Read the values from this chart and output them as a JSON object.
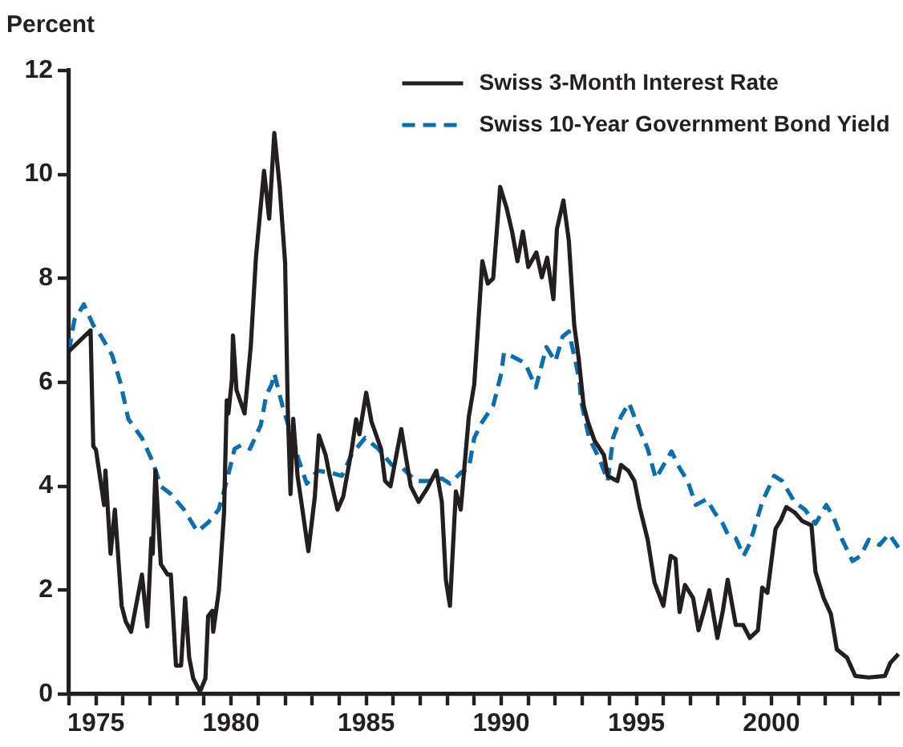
{
  "chart_data": {
    "type": "line",
    "ylabel": "Percent",
    "xlim": [
      1974,
      2004.75
    ],
    "ylim": [
      0,
      12
    ],
    "yticks": [
      0,
      2,
      4,
      6,
      8,
      10,
      12
    ],
    "xticks": [
      {
        "value": 1974,
        "label": null
      },
      1975,
      {
        "value": 1976,
        "label": null
      },
      {
        "value": 1977,
        "label": null
      },
      {
        "value": 1978,
        "label": null
      },
      {
        "value": 1979,
        "label": null
      },
      1980,
      {
        "value": 1981,
        "label": null
      },
      {
        "value": 1982,
        "label": null
      },
      {
        "value": 1983,
        "label": null
      },
      {
        "value": 1984,
        "label": null
      },
      1985,
      {
        "value": 1986,
        "label": null
      },
      {
        "value": 1987,
        "label": null
      },
      {
        "value": 1988,
        "label": null
      },
      {
        "value": 1989,
        "label": null
      },
      1990,
      {
        "value": 1991,
        "label": null
      },
      {
        "value": 1992,
        "label": null
      },
      {
        "value": 1993,
        "label": null
      },
      {
        "value": 1994,
        "label": null
      },
      1995,
      {
        "value": 1996,
        "label": null
      },
      {
        "value": 1997,
        "label": null
      },
      {
        "value": 1998,
        "label": null
      },
      {
        "value": 1999,
        "label": null
      },
      2000,
      {
        "value": 2001,
        "label": null
      },
      {
        "value": 2002,
        "label": null
      },
      {
        "value": 2003,
        "label": null
      },
      {
        "value": 2004,
        "label": null
      }
    ],
    "grid": false,
    "legend": "top right",
    "series": [
      {
        "name": "Swiss 3-Month Interest Rate",
        "color": "#231f20",
        "line_style": "solid",
        "x": [
          1974,
          1974.4,
          1974.8,
          1974.85,
          1974.9,
          1975,
          1975.3,
          1975.35,
          1975.54,
          1975.7,
          1975.95,
          1976.1,
          1976.3,
          1976.7,
          1976.9,
          1977.05,
          1977.1,
          1977.2,
          1977.4,
          1977.65,
          1977.77,
          1977.96,
          1978.15,
          1978.3,
          1978.45,
          1978.6,
          1978.85,
          1979.05,
          1979.15,
          1979.3,
          1979.34,
          1979.55,
          1979.74,
          1979.84,
          1979.9,
          1980.03,
          1980.07,
          1980.2,
          1980.5,
          1980.73,
          1980.92,
          1981.22,
          1981.41,
          1981.6,
          1981.8,
          1982,
          1982.1,
          1982.2,
          1982.3,
          1982.46,
          1982.6,
          1982.86,
          1983.1,
          1983.25,
          1983.5,
          1983.65,
          1983.94,
          1984.15,
          1984.47,
          1984.63,
          1984.75,
          1985,
          1985.2,
          1985.55,
          1985.7,
          1985.9,
          1986.3,
          1986.65,
          1986.94,
          1987.25,
          1987.6,
          1987.8,
          1987.95,
          1988.1,
          1988.32,
          1988.5,
          1988.8,
          1989,
          1989.3,
          1989.5,
          1989.7,
          1989.96,
          1990.2,
          1990.4,
          1990.6,
          1990.8,
          1991,
          1991.3,
          1991.5,
          1991.7,
          1991.93,
          1992.06,
          1992.3,
          1992.5,
          1992.7,
          1992.86,
          1993.05,
          1993.2,
          1993.45,
          1993.8,
          1993.94,
          1994.3,
          1994.43,
          1994.7,
          1994.93,
          1995.12,
          1995.42,
          1995.67,
          1996,
          1996.27,
          1996.45,
          1996.6,
          1996.8,
          1997.1,
          1997.3,
          1997.5,
          1997.7,
          1998,
          1998.2,
          1998.38,
          1998.68,
          1998.95,
          1999.2,
          1999.5,
          1999.66,
          1999.85,
          2000.15,
          2000.35,
          2000.55,
          2000.85,
          2001.14,
          2001.48,
          2001.63,
          2001.93,
          2002.2,
          2002.42,
          2002.8,
          2003.1,
          2003.6,
          2004.2,
          2004.4,
          2004.7
        ],
        "values": [
          6.6,
          6.8,
          7,
          5.85,
          4.77,
          4.7,
          3.64,
          4.3,
          2.7,
          3.55,
          1.7,
          1.4,
          1.2,
          2.3,
          1.3,
          3,
          2.7,
          4.3,
          2.5,
          2.3,
          2.3,
          0.55,
          0.55,
          1.85,
          0.7,
          0.3,
          0.05,
          0.3,
          1.5,
          1.6,
          1.2,
          2,
          3.5,
          5.65,
          5.4,
          6.05,
          6.9,
          5.85,
          5.4,
          6.7,
          8.4,
          10.07,
          9.15,
          10.8,
          9.76,
          8.3,
          5.44,
          3.85,
          5.3,
          4.2,
          3.7,
          2.75,
          3.8,
          4.98,
          4.6,
          4.2,
          3.55,
          3.8,
          4.72,
          5.29,
          5,
          5.8,
          5.24,
          4.72,
          4.1,
          4,
          5.1,
          4,
          3.7,
          3.95,
          4.3,
          3.7,
          2.2,
          1.7,
          3.9,
          3.55,
          5.34,
          5.96,
          8.33,
          7.9,
          8,
          9.76,
          9.35,
          8.9,
          8.33,
          8.9,
          8.22,
          8.5,
          8.02,
          8.4,
          7.6,
          8.95,
          9.5,
          8.73,
          7.1,
          6.48,
          5.55,
          5.25,
          4.88,
          4.6,
          4.2,
          4.1,
          4.41,
          4.3,
          4.1,
          3.6,
          2.97,
          2.15,
          1.7,
          2.66,
          2.6,
          1.58,
          2.1,
          1.85,
          1.23,
          1.6,
          2,
          1.08,
          1.6,
          2.2,
          1.33,
          1.33,
          1.08,
          1.23,
          2.05,
          1.95,
          3.18,
          3.35,
          3.6,
          3.5,
          3.33,
          3.25,
          2.35,
          1.85,
          1.54,
          0.86,
          0.7,
          0.35,
          0.32,
          0.35,
          0.6,
          0.77
        ]
      },
      {
        "name": "Swiss 10-Year Government Bond Yield",
        "color": "#0b6fae",
        "line_style": "dashed",
        "x": [
          1974,
          1974.2,
          1974.55,
          1974.9,
          1975.2,
          1975.6,
          1975.9,
          1976.2,
          1976.7,
          1977.1,
          1977.4,
          1977.77,
          1978.26,
          1978.75,
          1979.15,
          1979.54,
          1979.84,
          1980.13,
          1980.4,
          1980.7,
          1981.1,
          1981.3,
          1981.5,
          1981.6,
          1981.9,
          1982.2,
          1982.5,
          1982.8,
          1983.2,
          1983.69,
          1984.1,
          1984.47,
          1984.96,
          1985.45,
          1985.95,
          1986.35,
          1986.84,
          1987.3,
          1987.8,
          1988.1,
          1988.5,
          1988.8,
          1989,
          1989.3,
          1989.7,
          1990,
          1990.1,
          1990.4,
          1990.88,
          1991.28,
          1991.67,
          1992,
          1992.27,
          1992.5,
          1992.76,
          1992.9,
          1992.95,
          1993.25,
          1993.65,
          1993.94,
          1994.14,
          1994.43,
          1994.73,
          1995,
          1995.42,
          1995.72,
          1996,
          1996.3,
          1996.6,
          1996.9,
          1997.2,
          1997.6,
          1997.9,
          1998.2,
          1998.38,
          1998.68,
          1998.97,
          1999.2,
          1999.66,
          2000.1,
          2000.4,
          2000.85,
          2001.24,
          2001.63,
          2002.03,
          2002.3,
          2002.62,
          2003,
          2003.3,
          2003.6,
          2004,
          2004.35,
          2004.7
        ],
        "values": [
          6.6,
          7.2,
          7.5,
          7.1,
          6.88,
          6.52,
          6,
          5.29,
          4.93,
          4.47,
          4,
          3.85,
          3.55,
          3.13,
          3.3,
          3.55,
          4.1,
          4.72,
          4.8,
          4.72,
          5.18,
          5.75,
          5.96,
          6.17,
          5.55,
          5.03,
          4.51,
          4.05,
          4.3,
          4.26,
          4.2,
          4.62,
          4.93,
          4.72,
          4.41,
          4.35,
          4.1,
          4.1,
          4.15,
          4.05,
          4.26,
          4.35,
          4.93,
          5.24,
          5.55,
          6.17,
          6.57,
          6.5,
          6.37,
          5.9,
          6.68,
          6.4,
          6.88,
          6.98,
          6.37,
          6,
          5.65,
          4.93,
          4.51,
          4.1,
          4.93,
          5.34,
          5.6,
          5.24,
          4.72,
          4.15,
          4.4,
          4.67,
          4.35,
          4.1,
          3.64,
          3.75,
          3.49,
          3.28,
          3.08,
          3,
          2.66,
          2.9,
          3.7,
          4.2,
          4.1,
          3.7,
          3.55,
          3.28,
          3.64,
          3.4,
          2.97,
          2.56,
          2.66,
          2.97,
          2.87,
          3.08,
          2.82
        ]
      }
    ]
  }
}
